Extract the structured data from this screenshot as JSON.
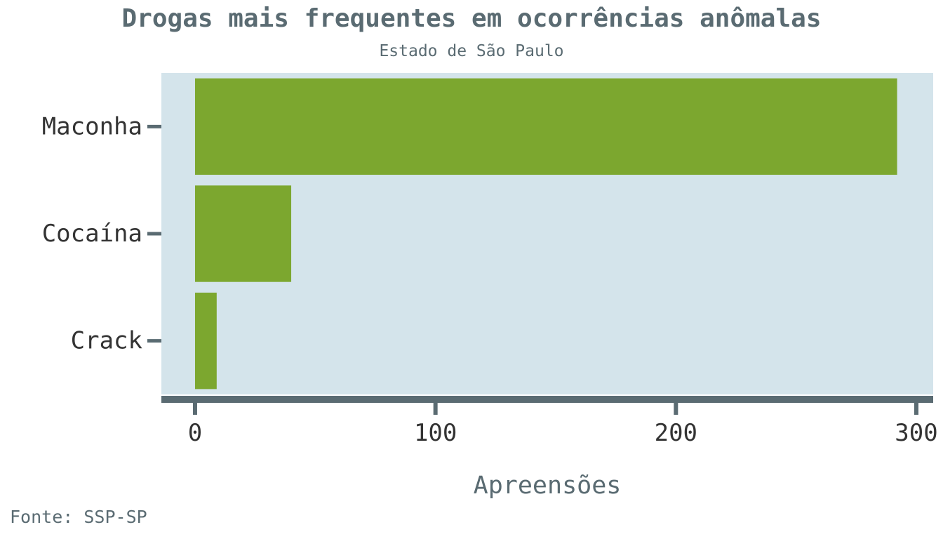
{
  "chart_data": {
    "type": "bar",
    "orientation": "horizontal",
    "title": "Drogas mais frequentes em ocorrências anômalas",
    "subtitle": "Estado de São Paulo",
    "caption": "Fonte: SSP-SP",
    "xlabel": "Apreensões",
    "ylabel": "",
    "categories": [
      "Maconha",
      "Cocaína",
      "Crack"
    ],
    "values": [
      292,
      40,
      9
    ],
    "xlim": [
      -14,
      307
    ],
    "xticks": [
      0,
      100,
      200,
      300
    ],
    "grid": false,
    "legend": "none",
    "colors": {
      "bar": "#7ca72f",
      "panel": "#d4e4eb",
      "axis": "#5a6b72",
      "text": "#5a6b72"
    }
  }
}
